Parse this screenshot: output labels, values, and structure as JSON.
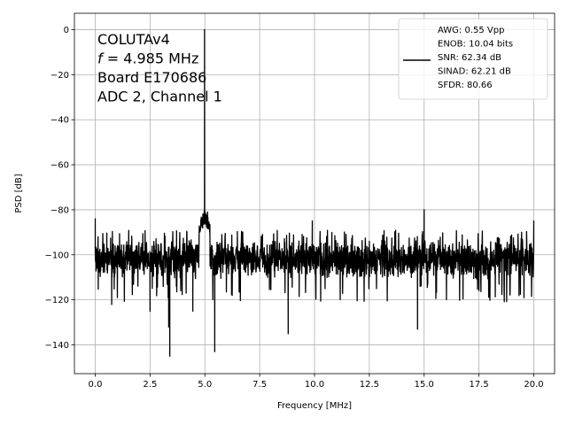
{
  "chart_data": {
    "type": "line",
    "xlabel": "Frequency [MHz]",
    "ylabel": "PSD [dB]",
    "xlim": [
      -0.95,
      20.95
    ],
    "ylim": [
      -152.8,
      7.3
    ],
    "grid": true,
    "legend_placement": "top-right",
    "x_ticks": [
      0.0,
      2.5,
      5.0,
      7.5,
      10.0,
      12.5,
      15.0,
      17.5,
      20.0
    ],
    "x_tick_labels": [
      "0.0",
      "2.5",
      "5.0",
      "7.5",
      "10.0",
      "12.5",
      "15.0",
      "17.5",
      "20.0"
    ],
    "y_ticks": [
      0,
      -20,
      -40,
      -60,
      -80,
      -100,
      -120,
      -140
    ],
    "y_tick_labels": [
      "0",
      "−20",
      "−40",
      "−60",
      "−80",
      "−100",
      "−120",
      "−140"
    ],
    "annotations": [
      "COLUTAv4",
      "f = 4.985 MHz",
      "Board E170686",
      "ADC 2, Channel 1"
    ],
    "series": [
      {
        "name": "AWG: 0.55 Vpp\nENOB: 10.04 bits\nSNR: 62.34 dB\nSINAD: 62.21 dB\nSFDR: 80.66",
        "legend_lines": [
          "AWG: 0.55 Vpp",
          "ENOB: 10.04 bits",
          "SNR: 62.34 dB",
          "SINAD: 62.21 dB",
          "SFDR: 80.66"
        ],
        "color": "#000000",
        "noise_floor_db": -102,
        "noise_band_db": [
          -113,
          -93
        ],
        "x_range": [
          0.0,
          20.0
        ],
        "peaks": [
          {
            "x": 0.0,
            "y": -84
          },
          {
            "x": 4.985,
            "y": 0.0
          },
          {
            "x": 4.9,
            "y": -88
          },
          {
            "x": 5.12,
            "y": -81
          },
          {
            "x": 9.9,
            "y": -85
          },
          {
            "x": 15.0,
            "y": -80
          },
          {
            "x": 20.0,
            "y": -85
          }
        ],
        "dips": [
          {
            "x": 3.4,
            "y": -145
          },
          {
            "x": 3.35,
            "y": -132
          },
          {
            "x": 5.45,
            "y": -143
          },
          {
            "x": 8.8,
            "y": -135
          },
          {
            "x": 14.7,
            "y": -133
          },
          {
            "x": 0.75,
            "y": -122
          },
          {
            "x": 2.5,
            "y": -125
          },
          {
            "x": 4.45,
            "y": -125
          }
        ]
      }
    ]
  }
}
